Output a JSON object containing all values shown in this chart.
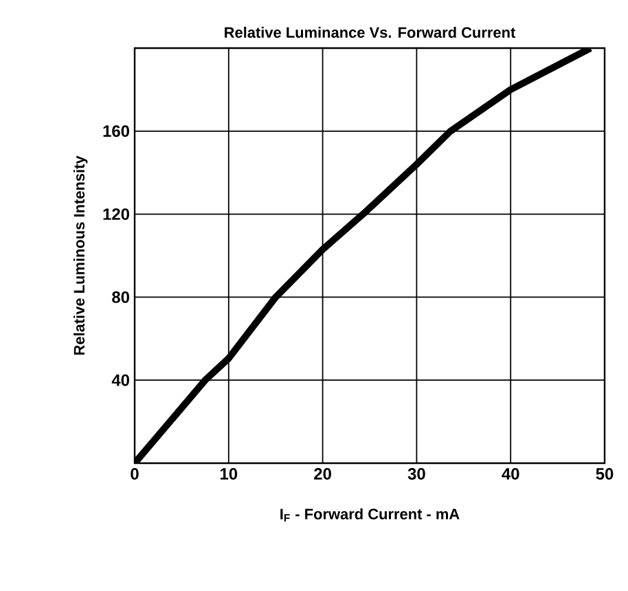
{
  "chart_data": {
    "type": "line",
    "title": "Relative Luminance Vs. Forward Current",
    "xlabel": "I$_{F}$ - Forward Current - mA",
    "ylabel": "Relative Luminous Intensity",
    "x": [
      0,
      7.5,
      10,
      15,
      20,
      24.3,
      30,
      33.6,
      40,
      48.5
    ],
    "values": [
      0,
      40,
      50.5,
      80,
      103,
      120,
      144,
      160,
      180,
      200
    ],
    "color": "#000000",
    "xlim": [
      0,
      50
    ],
    "ylim": [
      0,
      200
    ],
    "xticks": [
      0,
      10,
      20,
      30,
      40,
      50
    ],
    "yticks": [
      {
        "value": 0,
        "label": null
      },
      40,
      80,
      120,
      160,
      {
        "value": 200,
        "label": null
      }
    ],
    "grid": true,
    "marker": "none",
    "line_style": "solid"
  }
}
